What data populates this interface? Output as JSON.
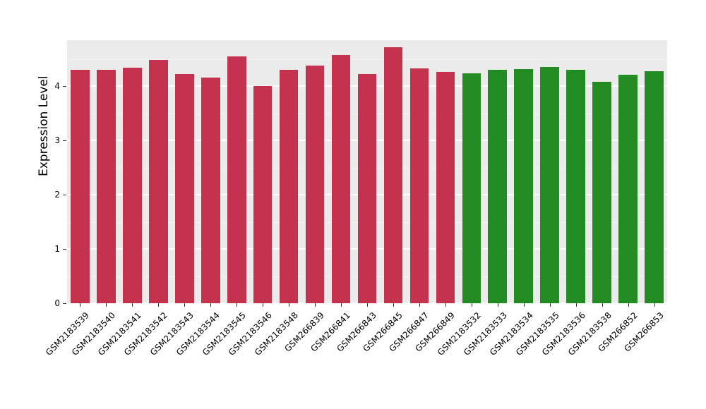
{
  "chart_data": {
    "type": "bar",
    "title": "",
    "xlabel": "",
    "ylabel": "Expression Level",
    "ylim": [
      0,
      4.85
    ],
    "yticks": [
      0,
      1,
      2,
      3,
      4
    ],
    "grid": "on",
    "legend": "none",
    "panel_background": "#ebebeb",
    "categories": [
      "GSM2183539",
      "GSM2183540",
      "GSM2183541",
      "GSM2183542",
      "GSM2183543",
      "GSM2183544",
      "GSM2183545",
      "GSM2183546",
      "GSM2183548",
      "GSM266839",
      "GSM266841",
      "GSM266843",
      "GSM266845",
      "GSM266847",
      "GSM266849",
      "GSM2183532",
      "GSM2183533",
      "GSM2183534",
      "GSM2183535",
      "GSM2183536",
      "GSM2183538",
      "GSM266852",
      "GSM266853"
    ],
    "values": [
      4.3,
      4.3,
      4.34,
      4.48,
      4.22,
      4.16,
      4.55,
      4.01,
      4.3,
      4.38,
      4.58,
      4.22,
      4.72,
      4.33,
      4.26,
      4.24,
      4.3,
      4.32,
      4.35,
      4.3,
      4.08,
      4.21,
      4.28
    ],
    "bar_colors": [
      "#c5324e",
      "#c5324e",
      "#c5324e",
      "#c5324e",
      "#c5324e",
      "#c5324e",
      "#c5324e",
      "#c5324e",
      "#c5324e",
      "#c5324e",
      "#c5324e",
      "#c5324e",
      "#c5324e",
      "#c5324e",
      "#c5324e",
      "#228b22",
      "#228b22",
      "#228b22",
      "#228b22",
      "#228b22",
      "#228b22",
      "#228b22",
      "#228b22"
    ],
    "group_colors": {
      "group1": "#c5324e",
      "group2": "#228b22"
    }
  }
}
